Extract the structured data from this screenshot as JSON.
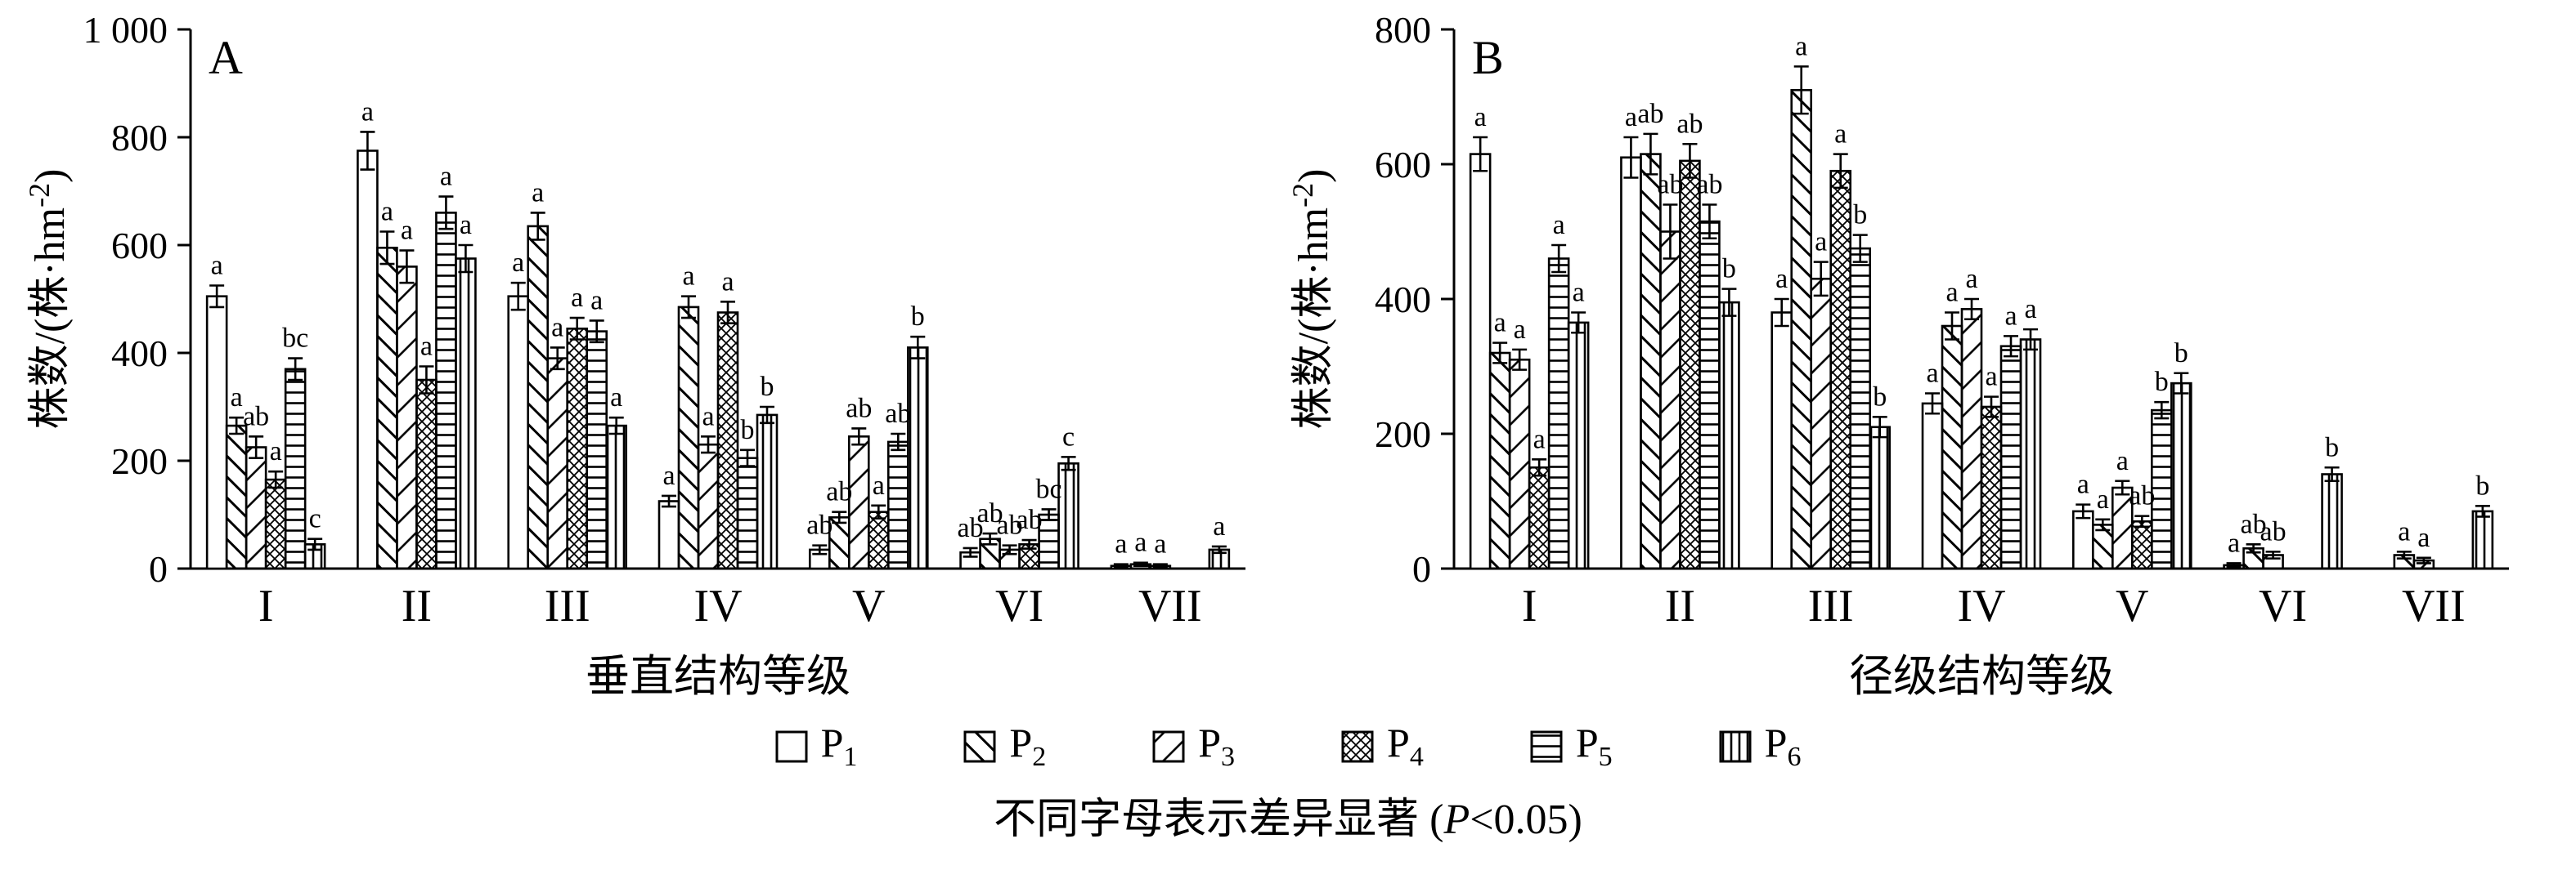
{
  "figure": {
    "caption": {
      "pre": "不同字母表示差异显著 (",
      "italic": "P",
      "post": "<0.05)"
    }
  },
  "legend": {
    "position": "bottom",
    "items": [
      {
        "base": "P",
        "sub": "1",
        "pattern": "p1",
        "pattern_desc": "plain-white"
      },
      {
        "base": "P",
        "sub": "2",
        "pattern": "p2",
        "pattern_desc": "backslash-hatch"
      },
      {
        "base": "P",
        "sub": "3",
        "pattern": "p3",
        "pattern_desc": "slash-hatch"
      },
      {
        "base": "P",
        "sub": "4",
        "pattern": "p4",
        "pattern_desc": "cross-hatch"
      },
      {
        "base": "P",
        "sub": "5",
        "pattern": "p5",
        "pattern_desc": "horizontal-lines"
      },
      {
        "base": "P",
        "sub": "6",
        "pattern": "p6",
        "pattern_desc": "vertical-lines"
      }
    ]
  },
  "chart_data": [
    {
      "type": "bar",
      "panel_label": "A",
      "xlabel": "垂直结构等级",
      "ylabel_pre": "株数/(株·hm",
      "ylabel_sup": "-2",
      "ylabel_post": ")",
      "ylim": [
        0,
        1000
      ],
      "yticks": [
        0,
        200,
        400,
        600,
        800,
        1000
      ],
      "ytick_labels": [
        "0",
        "200",
        "400",
        "600",
        "800",
        "1 000"
      ],
      "categories": [
        "I",
        "II",
        "III",
        "IV",
        "V",
        "VI",
        "VII"
      ],
      "grid": false,
      "series": [
        {
          "name": "P1",
          "pattern": "p1",
          "values": [
            505,
            775,
            505,
            125,
            35,
            30,
            5
          ],
          "errors": [
            20,
            35,
            25,
            10,
            8,
            8,
            3
          ],
          "letters": [
            "a",
            "a",
            "a",
            "a",
            "ab",
            "ab",
            "a"
          ]
        },
        {
          "name": "P2",
          "pattern": "p2",
          "values": [
            265,
            595,
            635,
            485,
            95,
            55,
            8
          ],
          "errors": [
            15,
            30,
            25,
            20,
            10,
            10,
            3
          ],
          "letters": [
            "a",
            "a",
            "a",
            "a",
            "ab",
            "ab",
            "a"
          ]
        },
        {
          "name": "P3",
          "pattern": "p3",
          "values": [
            225,
            560,
            390,
            230,
            245,
            35,
            5
          ],
          "errors": [
            20,
            30,
            20,
            15,
            15,
            8,
            3
          ],
          "letters": [
            "ab",
            "a",
            "a",
            "a",
            "ab",
            "ab",
            "a"
          ]
        },
        {
          "name": "P4",
          "pattern": "p4",
          "values": [
            165,
            350,
            445,
            475,
            105,
            45,
            0
          ],
          "errors": [
            15,
            25,
            20,
            20,
            12,
            8,
            0
          ],
          "letters": [
            "a",
            "a",
            "a",
            "a",
            "a",
            "ab",
            ""
          ]
        },
        {
          "name": "P5",
          "pattern": "p5",
          "values": [
            370,
            660,
            440,
            205,
            235,
            100,
            0
          ],
          "errors": [
            20,
            30,
            20,
            15,
            15,
            10,
            0
          ],
          "letters": [
            "bc",
            "a",
            "a",
            "b",
            "ab",
            "bc",
            ""
          ]
        },
        {
          "name": "P6",
          "pattern": "p6",
          "values": [
            45,
            575,
            265,
            285,
            410,
            195,
            35
          ],
          "errors": [
            10,
            25,
            15,
            15,
            20,
            12,
            6
          ],
          "letters": [
            "c",
            "a",
            "a",
            "b",
            "b",
            "c",
            "a"
          ]
        }
      ]
    },
    {
      "type": "bar",
      "panel_label": "B",
      "xlabel": "径级结构等级",
      "ylabel_pre": "株数/(株·hm",
      "ylabel_sup": "-2",
      "ylabel_post": ")",
      "ylim": [
        0,
        800
      ],
      "yticks": [
        0,
        200,
        400,
        600,
        800
      ],
      "ytick_labels": [
        "0",
        "200",
        "400",
        "600",
        "800"
      ],
      "categories": [
        "I",
        "II",
        "III",
        "IV",
        "V",
        "VI",
        "VII"
      ],
      "grid": false,
      "series": [
        {
          "name": "P1",
          "pattern": "p1",
          "values": [
            615,
            610,
            380,
            245,
            85,
            5,
            0
          ],
          "errors": [
            25,
            30,
            20,
            15,
            10,
            3,
            0
          ],
          "letters": [
            "a",
            "a",
            "a",
            "a",
            "a",
            "a",
            ""
          ]
        },
        {
          "name": "P2",
          "pattern": "p2",
          "values": [
            320,
            615,
            710,
            360,
            65,
            30,
            20
          ],
          "errors": [
            15,
            30,
            35,
            20,
            8,
            6,
            5
          ],
          "letters": [
            "a",
            "ab",
            "a",
            "a",
            "a",
            "ab",
            "a"
          ]
        },
        {
          "name": "P3",
          "pattern": "p3",
          "values": [
            310,
            500,
            430,
            385,
            120,
            20,
            12
          ],
          "errors": [
            15,
            40,
            25,
            15,
            10,
            5,
            4
          ],
          "letters": [
            "a",
            "ab",
            "a",
            "a",
            "a",
            "ab",
            "a"
          ]
        },
        {
          "name": "P4",
          "pattern": "p4",
          "values": [
            150,
            605,
            590,
            240,
            70,
            0,
            0
          ],
          "errors": [
            12,
            25,
            25,
            15,
            8,
            0,
            0
          ],
          "letters": [
            "a",
            "ab",
            "a",
            "a",
            "ab",
            "",
            ""
          ]
        },
        {
          "name": "P5",
          "pattern": "p5",
          "values": [
            460,
            515,
            475,
            330,
            235,
            0,
            0
          ],
          "errors": [
            20,
            25,
            20,
            15,
            12,
            0,
            0
          ],
          "letters": [
            "a",
            "ab",
            "b",
            "a",
            "b",
            "",
            ""
          ]
        },
        {
          "name": "P6",
          "pattern": "p6",
          "values": [
            365,
            395,
            210,
            340,
            275,
            140,
            85
          ],
          "errors": [
            15,
            20,
            15,
            15,
            15,
            10,
            8
          ],
          "letters": [
            "a",
            "b",
            "b",
            "a",
            "b",
            "b",
            "b"
          ]
        }
      ]
    }
  ]
}
